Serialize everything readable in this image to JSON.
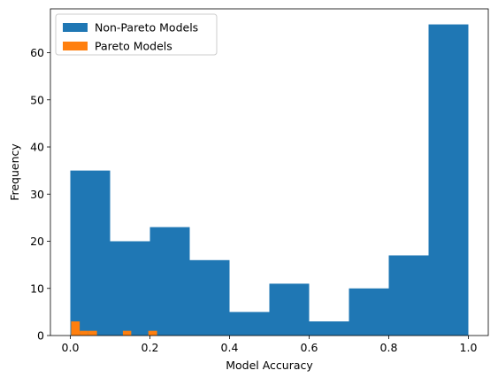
{
  "chart_data": {
    "type": "histogram",
    "xlabel": "Model Accuracy",
    "ylabel": "Frequency",
    "series": [
      {
        "name": "Non-Pareto Models",
        "color": "#1f77b4",
        "bins": [
          0.0,
          0.1,
          0.2,
          0.3,
          0.4,
          0.5,
          0.6,
          0.7,
          0.8,
          0.9,
          1.0
        ],
        "values": [
          35,
          20,
          23,
          16,
          5,
          11,
          3,
          10,
          17,
          66
        ]
      },
      {
        "name": "Pareto Models",
        "color": "#ff7f0e",
        "bins": [
          0.002,
          0.0236,
          0.045,
          0.067,
          0.088,
          0.11,
          0.132,
          0.153,
          0.175,
          0.196,
          0.218
        ],
        "values": [
          3,
          1,
          1,
          0,
          0,
          0,
          1,
          0,
          0,
          1
        ]
      }
    ],
    "xlim": [
      -0.05,
      1.05
    ],
    "xticks": [
      {
        "value": 0,
        "label": "0.0"
      },
      {
        "value": 0.2,
        "label": "0.2"
      },
      {
        "value": 0.4,
        "label": "0.4"
      },
      {
        "value": 0.6,
        "label": "0.6"
      },
      {
        "value": 0.8,
        "label": "0.8"
      },
      {
        "value": 1,
        "label": "1.0"
      }
    ],
    "ylim": [
      0,
      69.3
    ],
    "yticks": [
      0,
      10,
      20,
      30,
      40,
      50,
      60
    ],
    "legend": "upper left"
  }
}
